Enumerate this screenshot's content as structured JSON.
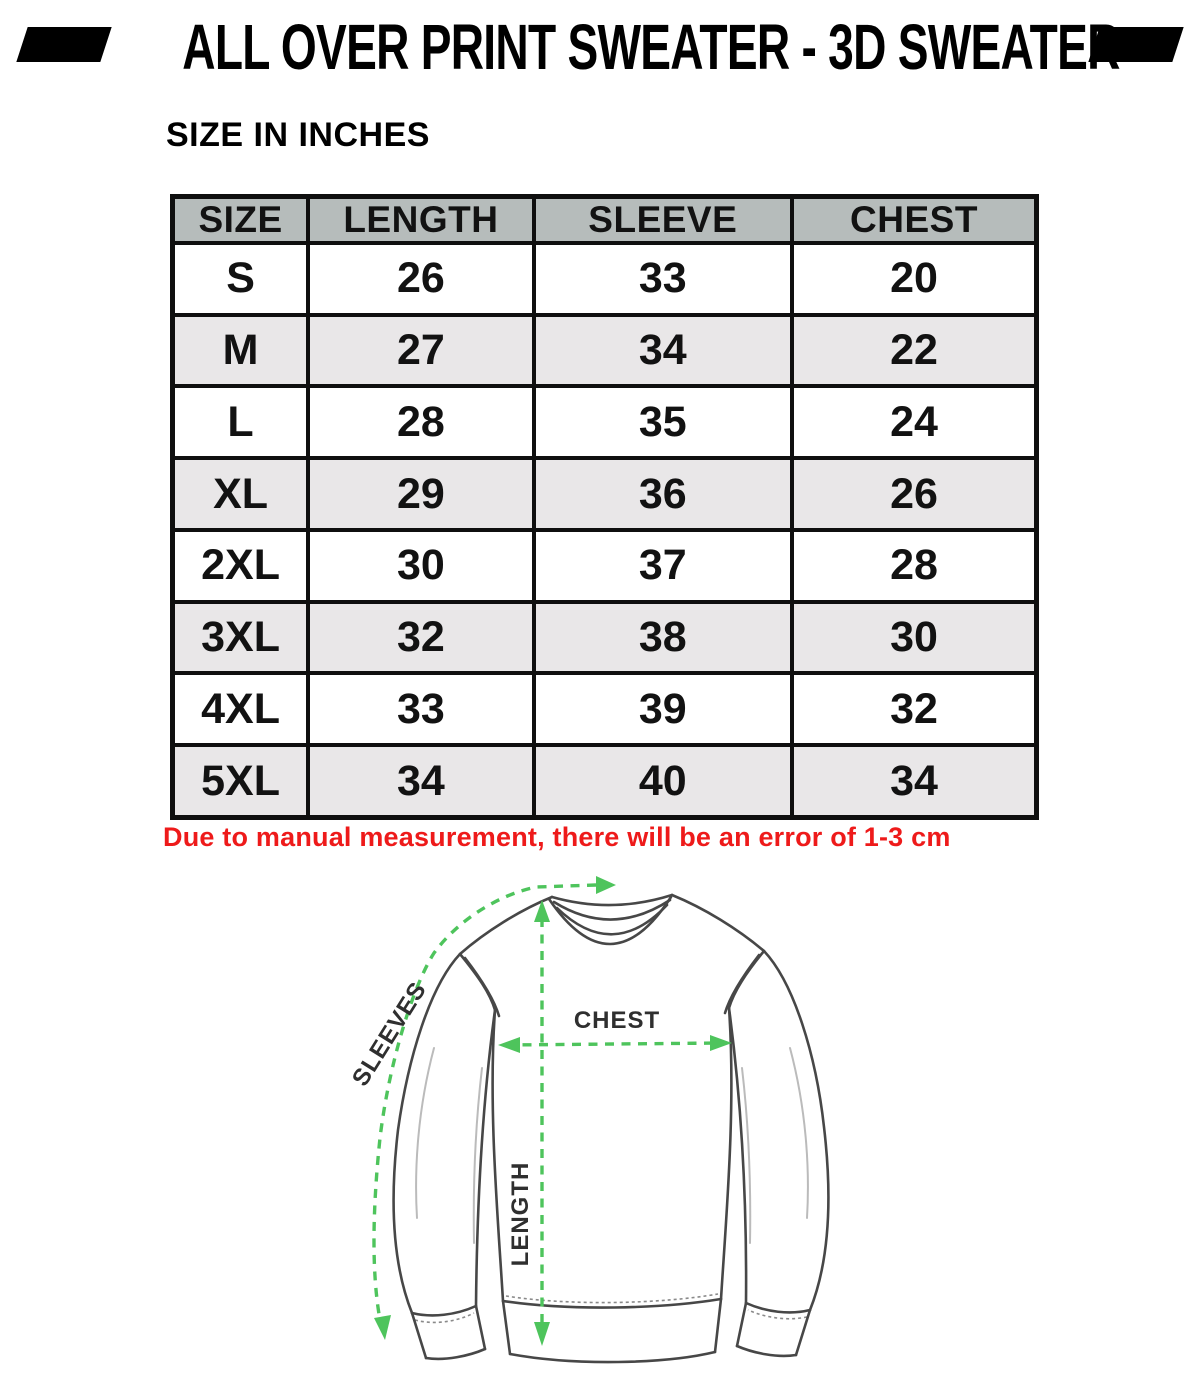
{
  "title": "ALL OVER PRINT SWEATER - 3D SWEATER",
  "subtitle": "SIZE IN INCHES",
  "size_table": {
    "headers": [
      "SIZE",
      "LENGTH",
      "SLEEVE",
      "CHEST"
    ],
    "rows": [
      [
        "S",
        "26",
        "33",
        "20"
      ],
      [
        "M",
        "27",
        "34",
        "22"
      ],
      [
        "L",
        "28",
        "35",
        "24"
      ],
      [
        "XL",
        "29",
        "36",
        "26"
      ],
      [
        "2XL",
        "30",
        "37",
        "28"
      ],
      [
        "3XL",
        "32",
        "38",
        "30"
      ],
      [
        "4XL",
        "33",
        "39",
        "32"
      ],
      [
        "5XL",
        "34",
        "40",
        "34"
      ]
    ]
  },
  "note": "Due to manual measurement, there will be an error of 1-3 cm",
  "diagram_labels": {
    "sleeves": "SLEEVES",
    "chest": "CHEST",
    "length": "LENGTH"
  },
  "colors": {
    "header_bg": "#b6bcbb",
    "row_alt": "#e9e7e8",
    "table_border": "#0f0f0f",
    "note_red": "#ee1a1a",
    "measure_green": "#4ec45c",
    "sweater_outline": "#474747",
    "text": "#121212"
  }
}
